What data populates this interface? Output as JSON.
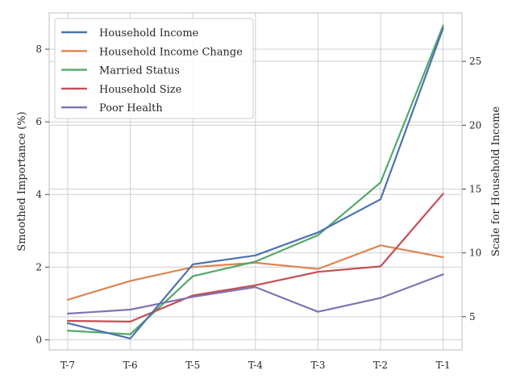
{
  "chart_data": {
    "type": "line",
    "categories": [
      "T-7",
      "T-6",
      "T-5",
      "T-4",
      "T-3",
      "T-2",
      "T-1"
    ],
    "ylabel": "Smoothed Importance (%)",
    "ylabel_right": "Scale for Household Income",
    "ylim": [
      -0.28,
      9.0
    ],
    "ylim_right": [
      2.4,
      28.8
    ],
    "yticks": [
      0,
      2,
      4,
      6,
      8
    ],
    "yticks_right": [
      5,
      10,
      15,
      20,
      25
    ],
    "grid": true,
    "legend_position": "top-left",
    "series": [
      {
        "name": "Household Income",
        "axis": "right",
        "color": "#4c72b0",
        "values": [
          4.5,
          3.3,
          9.1,
          9.8,
          11.6,
          14.2,
          27.6
        ]
      },
      {
        "name": "Household Income Change",
        "axis": "left",
        "color": "#dd8452",
        "values": [
          1.1,
          1.62,
          2.0,
          2.12,
          1.95,
          2.6,
          2.27
        ]
      },
      {
        "name": "Married Status",
        "axis": "left",
        "color": "#55a868",
        "values": [
          0.25,
          0.15,
          1.75,
          2.15,
          2.88,
          4.33,
          8.65
        ]
      },
      {
        "name": "Household Size",
        "axis": "left",
        "color": "#c44e52",
        "values": [
          0.52,
          0.5,
          1.22,
          1.5,
          1.87,
          2.02,
          4.02
        ]
      },
      {
        "name": "Poor Health",
        "axis": "left",
        "color": "#8172b3",
        "values": [
          0.72,
          0.83,
          1.18,
          1.45,
          0.77,
          1.15,
          1.8
        ]
      }
    ]
  }
}
